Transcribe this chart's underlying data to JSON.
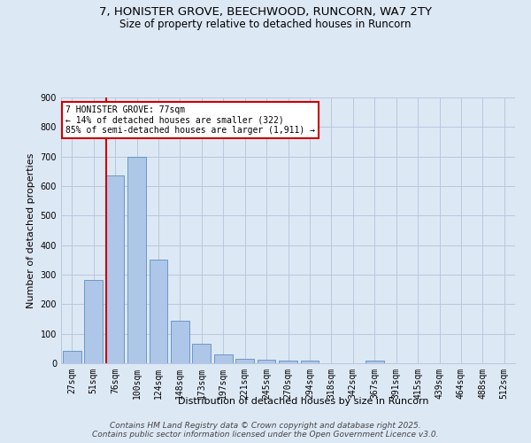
{
  "title_line1": "7, HONISTER GROVE, BEECHWOOD, RUNCORN, WA7 2TY",
  "title_line2": "Size of property relative to detached houses in Runcorn",
  "xlabel": "Distribution of detached houses by size in Runcorn",
  "ylabel": "Number of detached properties",
  "categories": [
    "27sqm",
    "51sqm",
    "76sqm",
    "100sqm",
    "124sqm",
    "148sqm",
    "173sqm",
    "197sqm",
    "221sqm",
    "245sqm",
    "270sqm",
    "294sqm",
    "318sqm",
    "342sqm",
    "367sqm",
    "391sqm",
    "415sqm",
    "439sqm",
    "464sqm",
    "488sqm",
    "512sqm"
  ],
  "values": [
    43,
    283,
    635,
    700,
    350,
    145,
    65,
    30,
    16,
    11,
    10,
    10,
    0,
    0,
    8,
    0,
    0,
    0,
    0,
    0,
    0
  ],
  "bar_color": "#aec6e8",
  "bar_edge_color": "#5a8fc0",
  "vline_color": "#cc0000",
  "vline_x_index": 2,
  "annotation_title": "7 HONISTER GROVE: 77sqm",
  "annotation_line2": "← 14% of detached houses are smaller (322)",
  "annotation_line3": "85% of semi-detached houses are larger (1,911) →",
  "annotation_box_color": "#ffffff",
  "annotation_box_edge": "#cc0000",
  "ylim": [
    0,
    900
  ],
  "yticks": [
    0,
    100,
    200,
    300,
    400,
    500,
    600,
    700,
    800,
    900
  ],
  "footer_line1": "Contains HM Land Registry data © Crown copyright and database right 2025.",
  "footer_line2": "Contains public sector information licensed under the Open Government Licence v3.0.",
  "bg_color": "#dde8f5",
  "grid_color": "#b8c8dc",
  "title_fontsize": 9.5,
  "subtitle_fontsize": 8.5,
  "axis_label_fontsize": 8,
  "tick_fontsize": 7,
  "annotation_fontsize": 7,
  "footer_fontsize": 6.5
}
